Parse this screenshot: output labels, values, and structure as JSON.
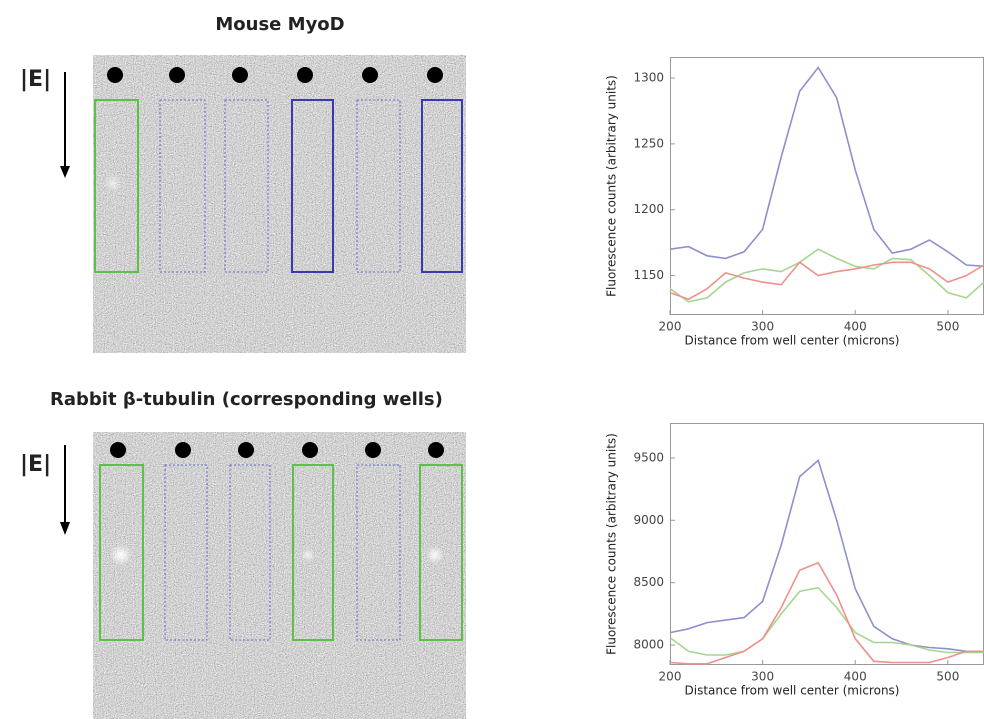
{
  "panels": [
    {
      "title": "Mouse MyoD",
      "field_label": "|E|"
    },
    {
      "title": "Rabbit β-tubulin (corresponding wells)",
      "field_label": "|E|"
    }
  ],
  "chart_data": [
    {
      "type": "line",
      "y_label": "Fluorescence counts (arbitrary units)",
      "x_label": "Distance from well center (microns)",
      "x": [
        200,
        220,
        240,
        260,
        280,
        300,
        320,
        340,
        360,
        380,
        400,
        420,
        440,
        460,
        480,
        500,
        520,
        539
      ],
      "series": [
        {
          "color": "#8f8fd0",
          "values": [
            1170,
            1172,
            1165,
            1163,
            1168,
            1185,
            1240,
            1290,
            1308,
            1285,
            1230,
            1185,
            1167,
            1170,
            1177,
            1168,
            1158,
            1157
          ]
        },
        {
          "color": "#a6d68f",
          "values": [
            1140,
            1130,
            1133,
            1145,
            1152,
            1155,
            1153,
            1160,
            1170,
            1163,
            1157,
            1155,
            1163,
            1162,
            1150,
            1137,
            1133,
            1145
          ]
        },
        {
          "color": "#f0908a",
          "values": [
            1137,
            1132,
            1140,
            1152,
            1148,
            1145,
            1143,
            1160,
            1150,
            1153,
            1155,
            1158,
            1160,
            1160,
            1155,
            1145,
            1150,
            1158
          ]
        }
      ],
      "xlim": [
        200,
        539
      ],
      "ylim": [
        1120,
        1316
      ],
      "xticks": [
        200,
        300,
        400,
        500
      ],
      "yticks": [
        1150,
        1200,
        1250,
        1300
      ]
    },
    {
      "type": "line",
      "y_label": "Fluorescence counts (arbitrary units)",
      "x_label": "Distance from well center (microns)",
      "x": [
        200,
        220,
        240,
        260,
        280,
        300,
        320,
        340,
        360,
        380,
        400,
        420,
        440,
        460,
        480,
        500,
        520,
        539
      ],
      "series": [
        {
          "color": "#8f8fd0",
          "values": [
            8100,
            8130,
            8180,
            8200,
            8220,
            8350,
            8800,
            9350,
            9480,
            9000,
            8450,
            8150,
            8050,
            8000,
            7980,
            7970,
            7950,
            7940
          ]
        },
        {
          "color": "#a6d68f",
          "values": [
            8060,
            7950,
            7920,
            7920,
            7950,
            8050,
            8250,
            8430,
            8460,
            8300,
            8100,
            8020,
            8020,
            8000,
            7960,
            7940,
            7940,
            7940
          ]
        },
        {
          "color": "#f0908a",
          "values": [
            7860,
            7850,
            7850,
            7900,
            7950,
            8050,
            8300,
            8600,
            8660,
            8400,
            8050,
            7870,
            7860,
            7860,
            7860,
            7900,
            7950,
            7950
          ]
        }
      ],
      "xlim": [
        200,
        539
      ],
      "ylim": [
        7840,
        9780
      ],
      "xticks": [
        200,
        300,
        400,
        500
      ],
      "yticks": [
        8000,
        8500,
        9000,
        9500
      ]
    }
  ]
}
